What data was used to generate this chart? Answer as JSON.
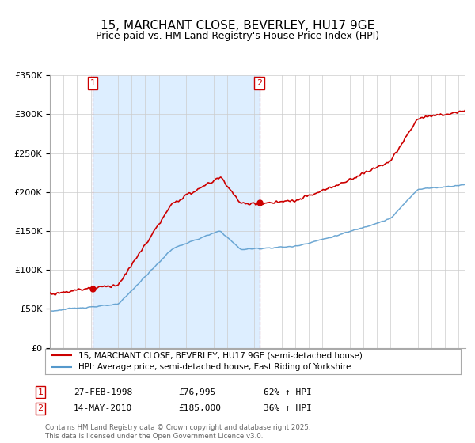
{
  "title": "15, MARCHANT CLOSE, BEVERLEY, HU17 9GE",
  "subtitle": "Price paid vs. HM Land Registry's House Price Index (HPI)",
  "property_label": "15, MARCHANT CLOSE, BEVERLEY, HU17 9GE (semi-detached house)",
  "hpi_label": "HPI: Average price, semi-detached house, East Riding of Yorkshire",
  "footnote": "Contains HM Land Registry data © Crown copyright and database right 2025.\nThis data is licensed under the Open Government Licence v3.0.",
  "purchases": [
    {
      "num": 1,
      "date": "27-FEB-1998",
      "price": 76995,
      "price_str": "£76,995",
      "pct": "62% ↑ HPI",
      "year": 1998.15
    },
    {
      "num": 2,
      "date": "14-MAY-2010",
      "price": 185000,
      "price_str": "£185,000",
      "pct": "36% ↑ HPI",
      "year": 2010.37
    }
  ],
  "ylim": [
    0,
    350000
  ],
  "yticks": [
    0,
    50000,
    100000,
    150000,
    200000,
    250000,
    300000,
    350000
  ],
  "ytick_labels": [
    "£0",
    "£50K",
    "£100K",
    "£150K",
    "£200K",
    "£250K",
    "£300K",
    "£350K"
  ],
  "xlim_start": 1995.0,
  "xlim_end": 2025.5,
  "red_color": "#cc0000",
  "blue_color": "#5599cc",
  "shade_color": "#ddeeff",
  "dashed_color": "#cc0000",
  "bg_color": "#ffffff",
  "grid_color": "#cccccc",
  "title_fontsize": 11,
  "subtitle_fontsize": 9,
  "axis_fontsize": 8,
  "legend_border_color": "#aaaaaa",
  "footnote_color": "#666666"
}
